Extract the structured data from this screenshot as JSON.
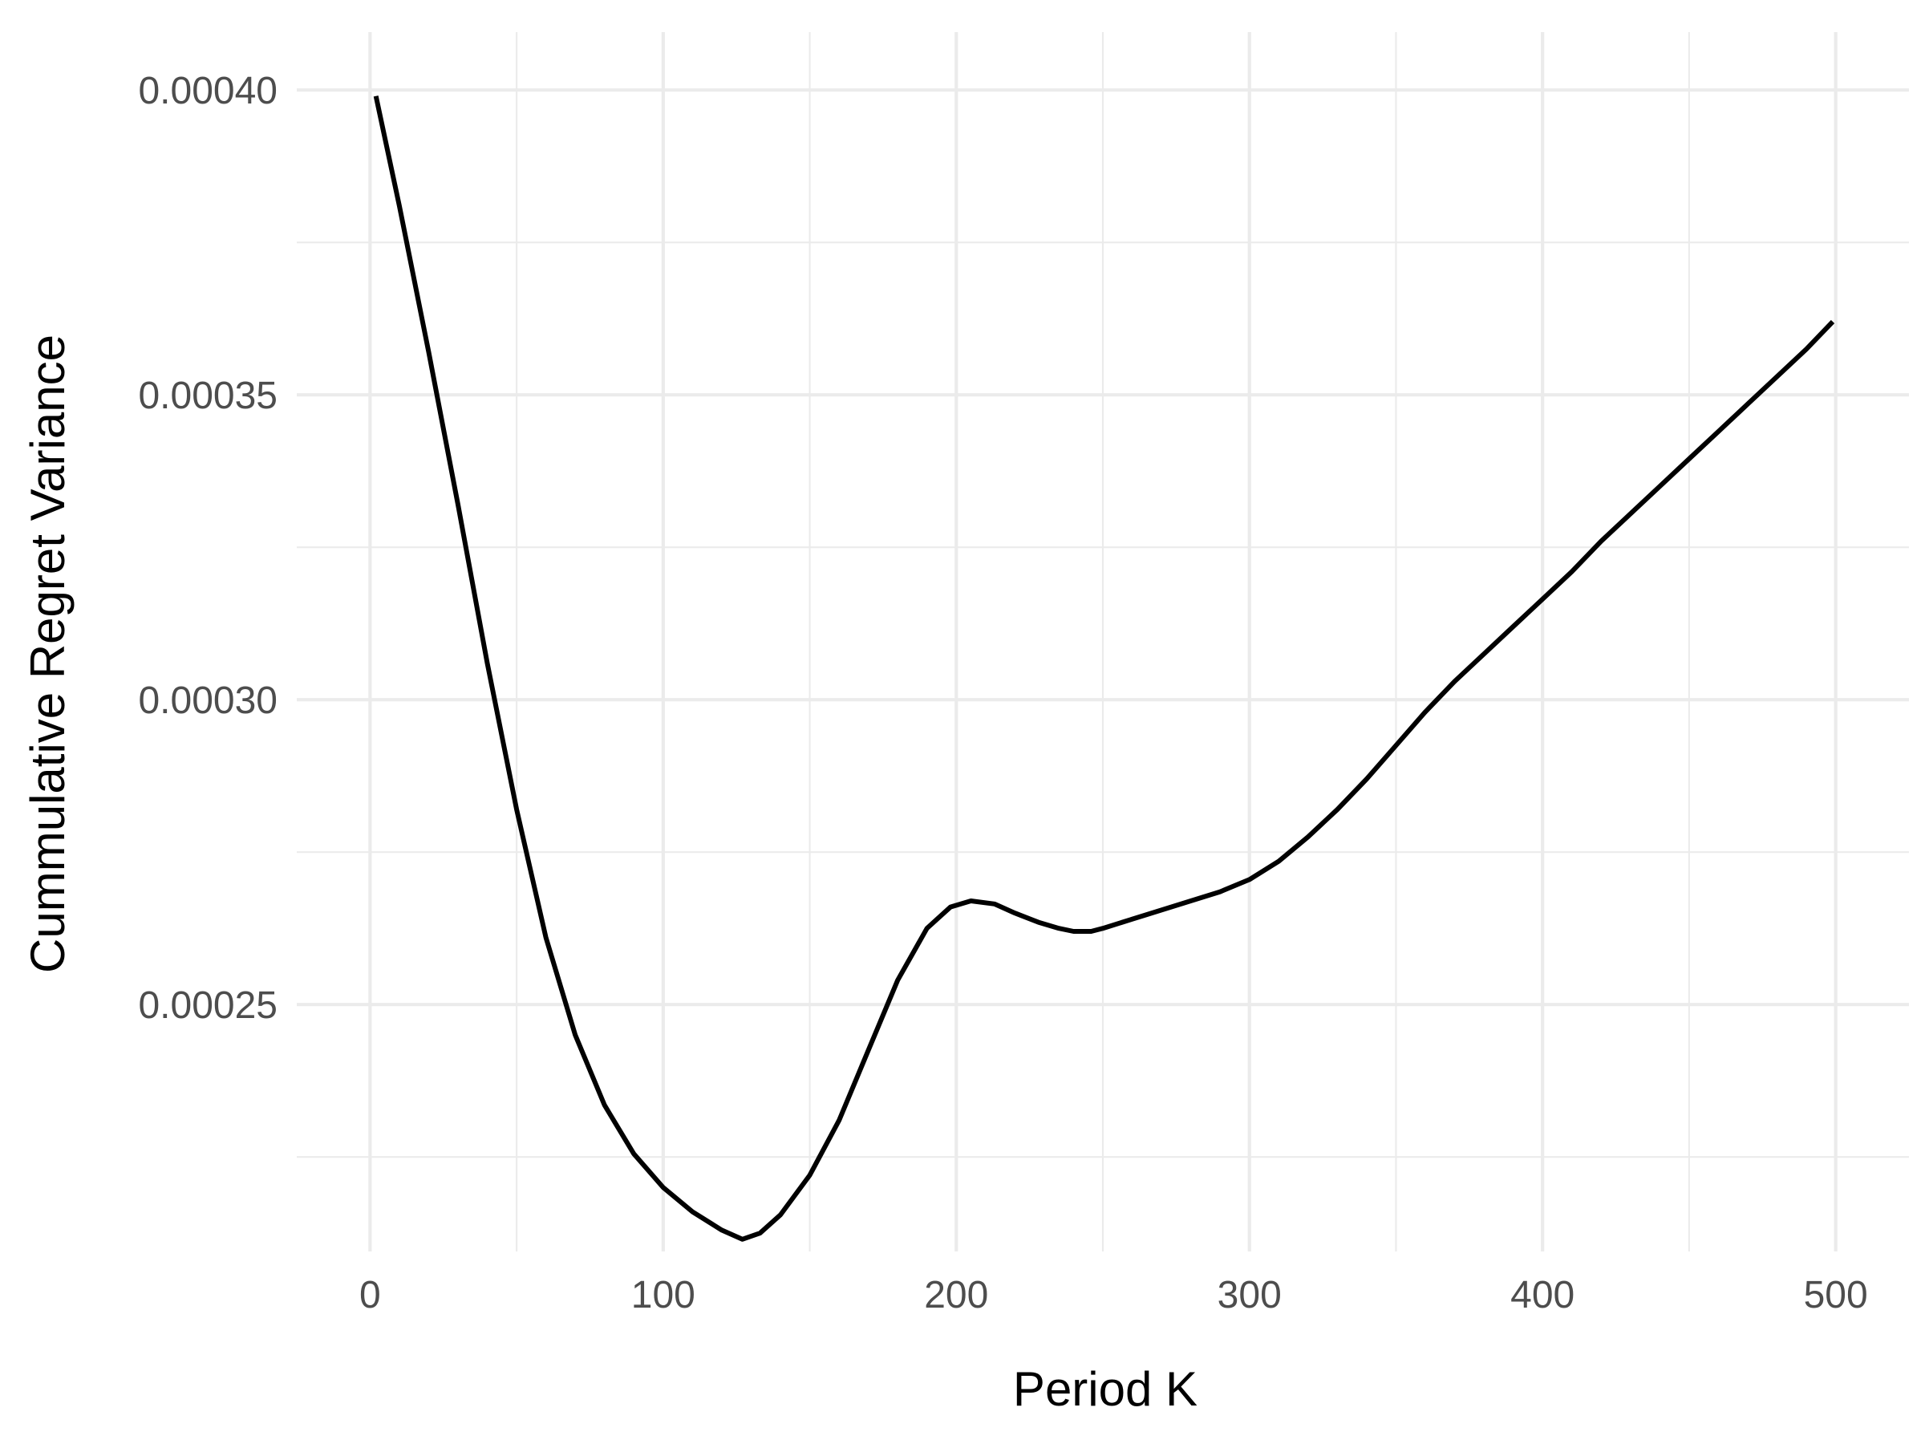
{
  "chart_data": {
    "type": "line",
    "title": "",
    "xlabel": "Period K",
    "ylabel": "Cummulative Regret Variance",
    "xlim": [
      -25,
      525
    ],
    "ylim": [
      0.0002095,
      0.0004095
    ],
    "x_ticks": [
      0,
      100,
      200,
      300,
      400,
      500
    ],
    "x_tick_labels": [
      "0",
      "100",
      "200",
      "300",
      "400",
      "500"
    ],
    "x_minor_ticks": [
      50,
      150,
      250,
      350,
      450
    ],
    "y_ticks": [
      0.00025,
      0.0003,
      0.00035,
      0.0004
    ],
    "y_tick_labels": [
      "0.00025",
      "0.00030",
      "0.00035",
      "0.00040"
    ],
    "y_minor_ticks": [
      0.000225,
      0.000275,
      0.000325,
      0.000375
    ],
    "grid": true,
    "legend": "none",
    "line_color": "#000000",
    "series": [
      {
        "x": [
          2,
          10,
          20,
          30,
          40,
          50,
          60,
          70,
          80,
          90,
          100,
          110,
          120,
          127,
          133,
          140,
          150,
          160,
          170,
          180,
          190,
          198,
          205,
          213,
          220,
          228,
          235,
          240,
          246,
          250,
          260,
          270,
          280,
          290,
          300,
          310,
          320,
          330,
          340,
          350,
          360,
          370,
          380,
          390,
          400,
          410,
          420,
          430,
          440,
          450,
          460,
          470,
          480,
          490,
          499
        ],
        "y": [
          0.000399,
          0.000381,
          0.000357,
          0.000332,
          0.000306,
          0.000282,
          0.000261,
          0.000245,
          0.0002335,
          0.0002255,
          0.00022,
          0.000216,
          0.000213,
          0.0002115,
          0.0002125,
          0.0002155,
          0.000222,
          0.000231,
          0.0002425,
          0.000254,
          0.0002625,
          0.000266,
          0.000267,
          0.0002665,
          0.000265,
          0.0002635,
          0.0002625,
          0.000262,
          0.000262,
          0.0002625,
          0.000264,
          0.0002655,
          0.000267,
          0.0002685,
          0.0002705,
          0.0002735,
          0.0002775,
          0.000282,
          0.000287,
          0.0002925,
          0.000298,
          0.000303,
          0.0003075,
          0.000312,
          0.0003165,
          0.000321,
          0.000326,
          0.0003305,
          0.000335,
          0.0003395,
          0.000344,
          0.0003485,
          0.000353,
          0.0003575,
          0.000362
        ]
      }
    ]
  }
}
